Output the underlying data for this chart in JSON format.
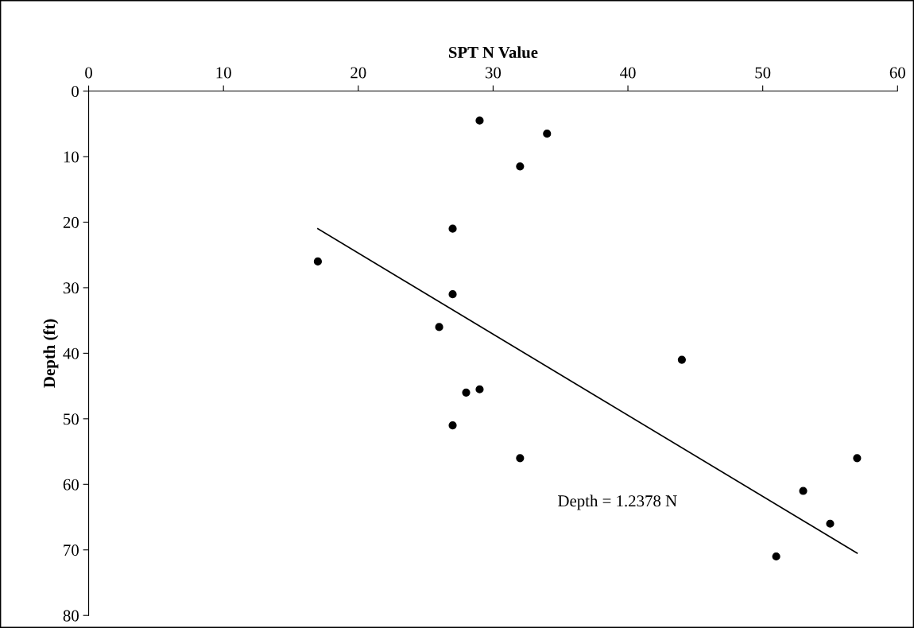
{
  "chart_data": {
    "type": "scatter",
    "xlabel": "SPT N Value",
    "ylabel": "Depth (ft)",
    "xlim": [
      0,
      60
    ],
    "xticks": [
      0,
      10,
      20,
      30,
      40,
      50,
      60
    ],
    "ylim": [
      80,
      0
    ],
    "yticks": [
      0,
      10,
      20,
      30,
      40,
      50,
      60,
      70,
      80
    ],
    "grid": false,
    "legend": false,
    "series": [
      {
        "marker": "circle",
        "color": "#000000",
        "x": [
          29,
          34,
          32,
          27,
          17,
          27,
          26,
          44,
          28,
          29,
          27,
          32,
          57,
          53,
          55,
          51
        ],
        "values": [
          4.5,
          6.5,
          11.5,
          21,
          26,
          31,
          36,
          41,
          46,
          45.5,
          51,
          56,
          56,
          61,
          66,
          71
        ]
      },
      {
        "type": "line",
        "marker": "none",
        "color": "#000000",
        "line_style": "solid",
        "x": [
          17,
          57
        ],
        "values": [
          21,
          70.5
        ]
      }
    ],
    "annotations": [
      "Depth = 1.2378 N"
    ]
  }
}
